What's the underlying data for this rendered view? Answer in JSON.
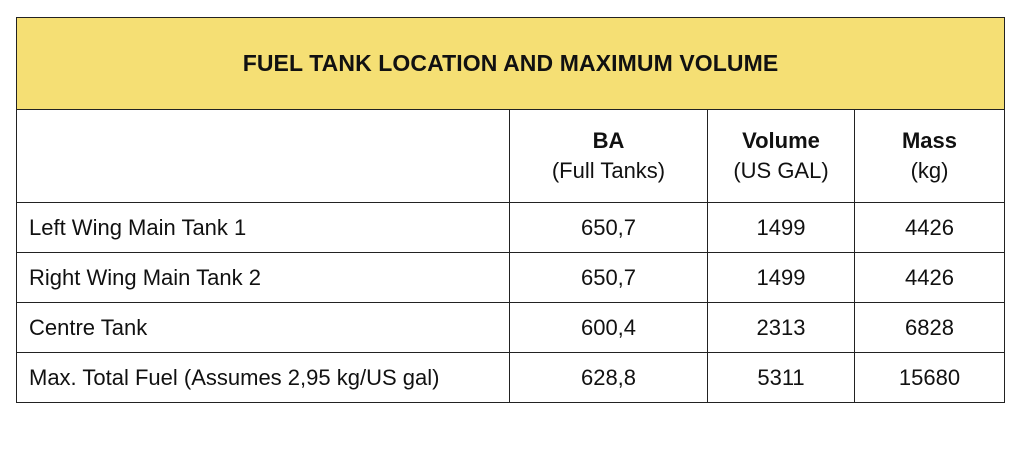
{
  "title": "FUEL TANK LOCATION AND MAXIMUM VOLUME",
  "columns": [
    {
      "main": "",
      "sub": ""
    },
    {
      "main": "BA",
      "sub": "(Full Tanks)"
    },
    {
      "main": "Volume",
      "sub": "(US GAL)"
    },
    {
      "main": "Mass",
      "sub": "(kg)"
    }
  ],
  "rows": [
    {
      "label": "Left Wing Main Tank 1",
      "ba": "650,7",
      "volume": "1499",
      "mass": "4426"
    },
    {
      "label": "Right Wing Main Tank 2",
      "ba": "650,7",
      "volume": "1499",
      "mass": "4426"
    },
    {
      "label": "Centre Tank",
      "ba": "600,4",
      "volume": "2313",
      "mass": "6828"
    },
    {
      "label": "Max. Total Fuel (Assumes 2,95 kg/US gal)",
      "ba": "628,8",
      "volume": "5311",
      "mass": "15680"
    }
  ],
  "colors": {
    "title_background": "#f5df74",
    "border": "#222222"
  }
}
